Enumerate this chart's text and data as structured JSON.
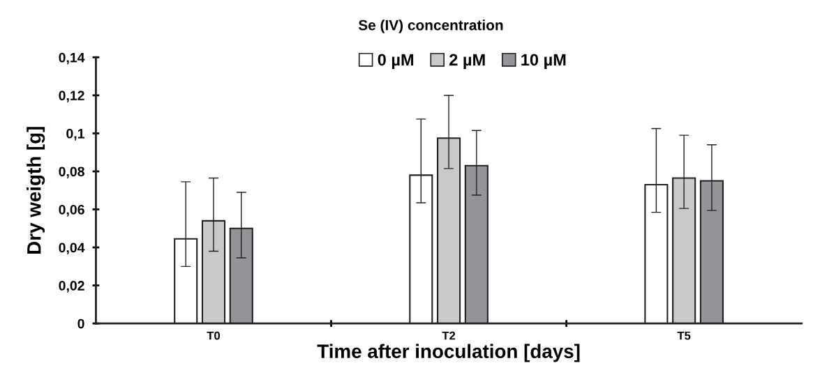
{
  "chart_data": {
    "type": "bar",
    "title": "Se (IV) concentration",
    "xlabel": "Time after inoculation [days]",
    "ylabel": "Dry weigth [g]",
    "categories": [
      "T0",
      "T2",
      "T5"
    ],
    "series": [
      {
        "name": "0 µM",
        "color": "#ffffff",
        "values": [
          0.0445,
          0.078,
          0.073
        ],
        "errors": [
          [
            0.03,
            0.0745
          ],
          [
            0.0635,
            0.1075
          ],
          [
            0.0585,
            0.1025
          ]
        ]
      },
      {
        "name": "2 µM",
        "color": "#c8c9cb",
        "values": [
          0.054,
          0.0975,
          0.0765
        ],
        "errors": [
          [
            0.038,
            0.0765
          ],
          [
            0.0815,
            0.12
          ],
          [
            0.0605,
            0.099
          ]
        ]
      },
      {
        "name": "10 µM",
        "color": "#939598",
        "values": [
          0.05,
          0.083,
          0.075
        ],
        "errors": [
          [
            0.0345,
            0.069
          ],
          [
            0.0675,
            0.1015
          ],
          [
            0.0595,
            0.094
          ]
        ]
      }
    ],
    "ylim": [
      0,
      0.14
    ],
    "yticks": [
      {
        "value": 0,
        "label": "0"
      },
      {
        "value": 0.02,
        "label": "0,02"
      },
      {
        "value": 0.04,
        "label": "0,04"
      },
      {
        "value": 0.06,
        "label": "0,06"
      },
      {
        "value": 0.08,
        "label": "0,08"
      },
      {
        "value": 0.1,
        "label": "0,1"
      },
      {
        "value": 0.12,
        "label": "0,12"
      },
      {
        "value": 0.14,
        "label": "0,14"
      }
    ],
    "legend": "top",
    "grid": false
  }
}
